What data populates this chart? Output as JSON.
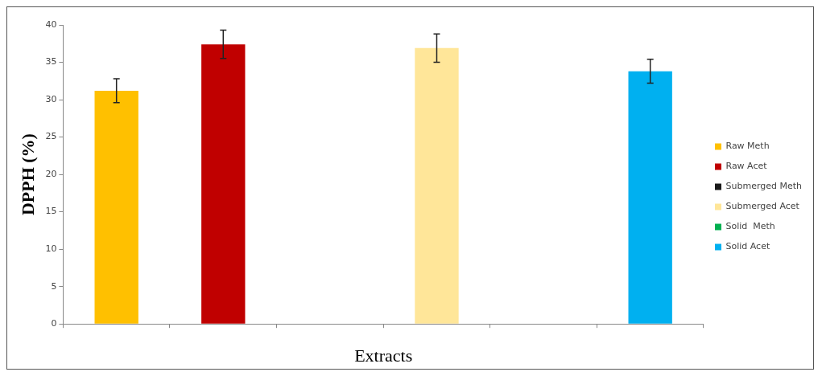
{
  "chart_data": {
    "type": "bar",
    "xlabel": "Extracts",
    "ylabel": "DPPH (%)",
    "categories": [
      null,
      null,
      null,
      null,
      null,
      null
    ],
    "series": [
      {
        "name": "Raw Meth",
        "color": "#ffc000",
        "values": [
          31.2,
          null,
          null,
          null,
          null,
          null
        ],
        "errors": [
          1.6,
          null,
          null,
          null,
          null,
          null
        ]
      },
      {
        "name": "Raw Acet",
        "color": "#c00000",
        "values": [
          null,
          37.4,
          null,
          null,
          null,
          null
        ],
        "errors": [
          null,
          1.9,
          null,
          null,
          null,
          null
        ]
      },
      {
        "name": "Submerged Meth",
        "color": "#1a1a1a",
        "values": [
          null,
          null,
          null,
          null,
          null,
          null
        ]
      },
      {
        "name": "Submerged Acet",
        "color": "#ffe699",
        "values": [
          null,
          null,
          null,
          36.9,
          null,
          null
        ],
        "errors": [
          null,
          null,
          null,
          1.9,
          null,
          null
        ]
      },
      {
        "name": "Solid  Meth",
        "color": "#00b050",
        "values": [
          null,
          null,
          null,
          null,
          null,
          null
        ]
      },
      {
        "name": "Solid Acet",
        "color": "#00b0f0",
        "values": [
          null,
          null,
          null,
          null,
          null,
          33.8
        ],
        "errors": [
          null,
          null,
          null,
          null,
          null,
          1.6
        ]
      }
    ],
    "ylim": [
      0,
      40
    ],
    "yticks": [
      0,
      5,
      10,
      15,
      20,
      25,
      30,
      35,
      40
    ],
    "legend": "right",
    "grid": false
  }
}
